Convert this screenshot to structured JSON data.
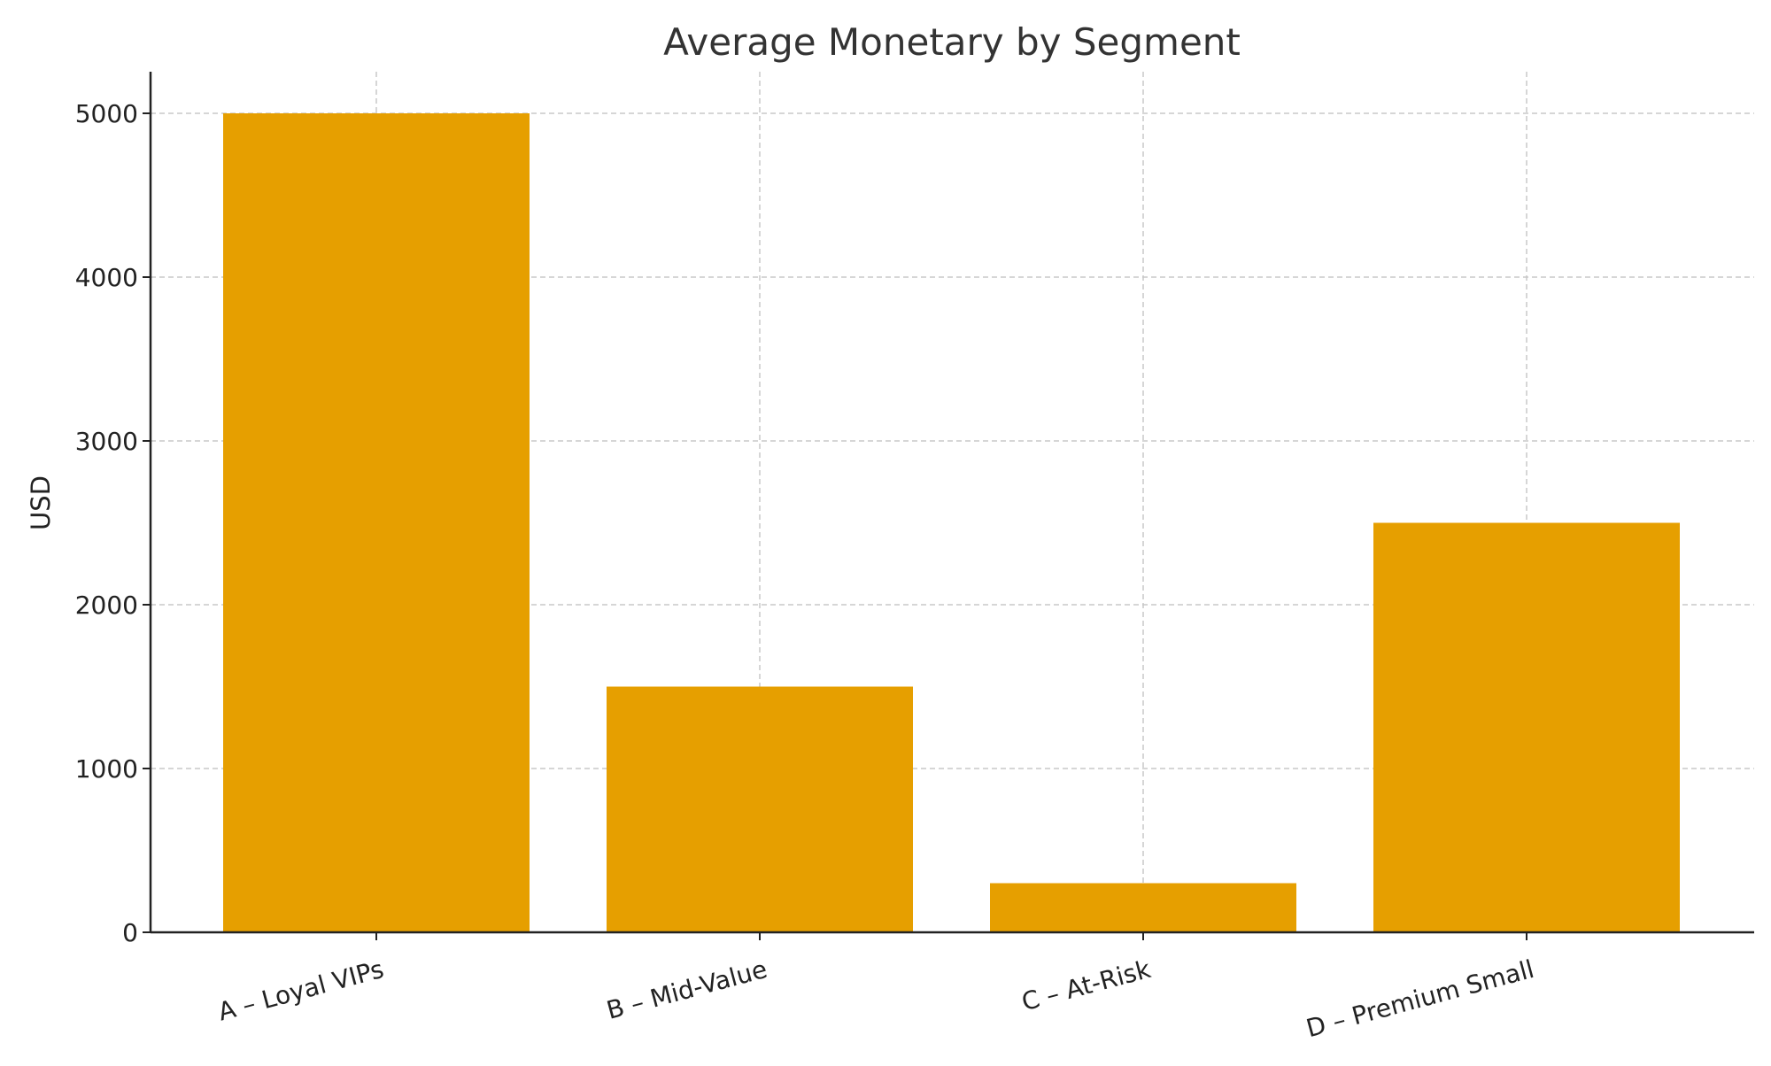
{
  "chart_data": {
    "type": "bar",
    "title": "Average Monetary by Segment",
    "xlabel": "",
    "ylabel": "USD",
    "categories": [
      "A – Loyal VIPs",
      "B – Mid-Value",
      "C – At-Risk",
      "D – Premium Small"
    ],
    "values": [
      5000,
      1500,
      300,
      2500
    ],
    "ylim": [
      0,
      5250
    ],
    "yticks": [
      0,
      1000,
      2000,
      3000,
      4000,
      5000
    ],
    "grid": true,
    "grid_style": "dashed",
    "bar_color": "#E69F00",
    "legend": "none"
  }
}
